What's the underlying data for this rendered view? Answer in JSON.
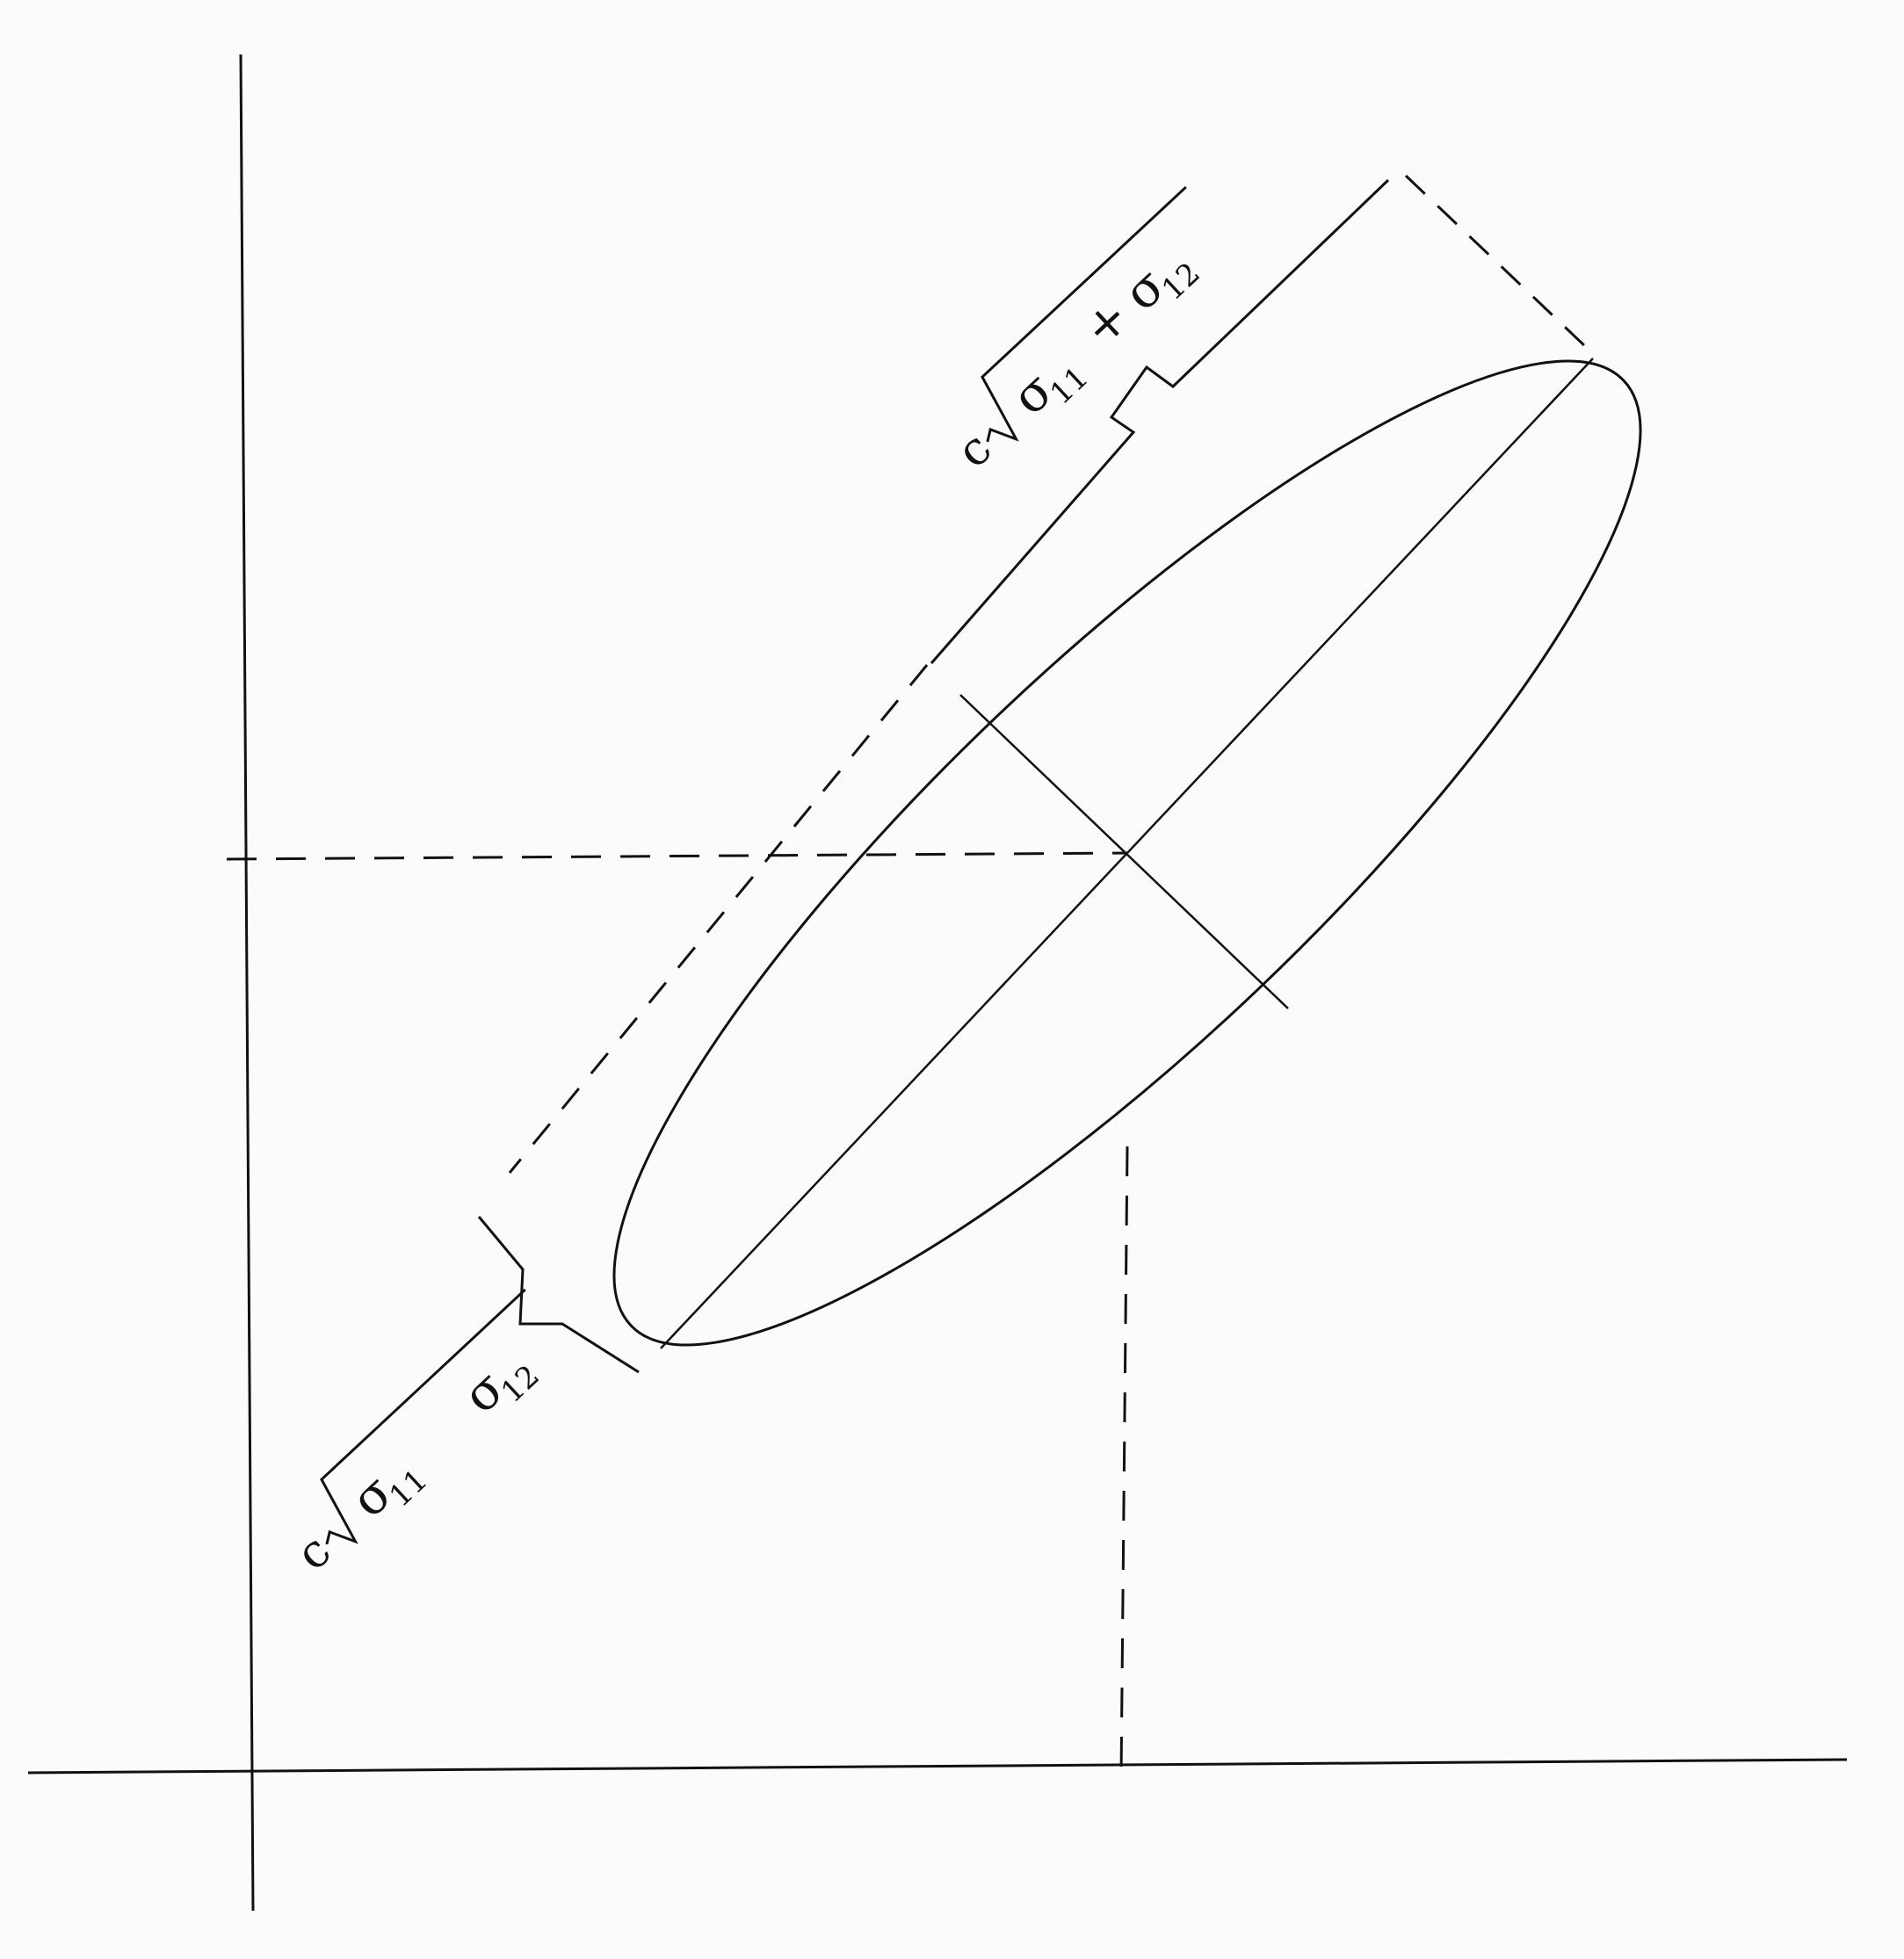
{
  "labels": {
    "major_axis": {
      "coef": "c",
      "sigma_a": "σ",
      "sub_a": "11",
      "operator": "+",
      "sigma_b": "σ",
      "sub_b": "12"
    },
    "minor_axis": {
      "coef": "c",
      "sigma_a": "σ",
      "sub_a": "11",
      "operator": "",
      "sigma_b": "σ",
      "sub_b": "12"
    }
  },
  "colors": {
    "ink": "#111111",
    "paper": "#fbfbfb"
  }
}
